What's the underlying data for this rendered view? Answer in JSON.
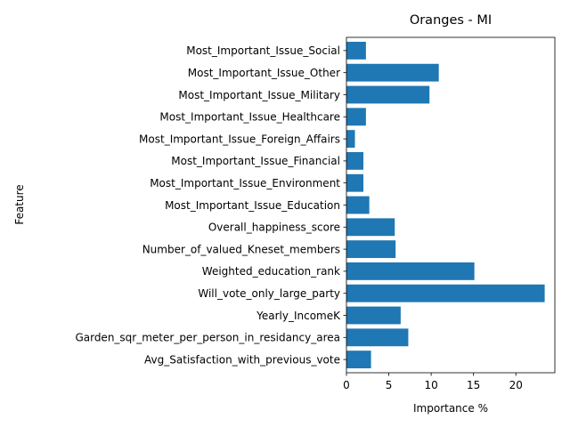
{
  "chart_data": {
    "type": "bar",
    "orientation": "horizontal",
    "title": "Oranges - MI",
    "xlabel": "Importance %",
    "ylabel": "Feature",
    "xlim": [
      0,
      24.6
    ],
    "xticks": [
      0,
      5,
      10,
      15,
      20
    ],
    "grid": false,
    "bar_color": "#1f77b4",
    "categories": [
      "Avg_Satisfaction_with_previous_vote",
      "Garden_sqr_meter_per_person_in_residancy_area",
      "Yearly_IncomeK",
      "Will_vote_only_large_party",
      "Weighted_education_rank",
      "Number_of_valued_Kneset_members",
      "Overall_happiness_score",
      "Most_Important_Issue_Education",
      "Most_Important_Issue_Environment",
      "Most_Important_Issue_Financial",
      "Most_Important_Issue_Foreign_Affairs",
      "Most_Important_Issue_Healthcare",
      "Most_Important_Issue_Military",
      "Most_Important_Issue_Other",
      "Most_Important_Issue_Social"
    ],
    "values": [
      2.9,
      7.3,
      6.4,
      23.4,
      15.1,
      5.8,
      5.7,
      2.7,
      2.0,
      2.0,
      1.0,
      2.3,
      9.8,
      10.9,
      2.3
    ]
  }
}
